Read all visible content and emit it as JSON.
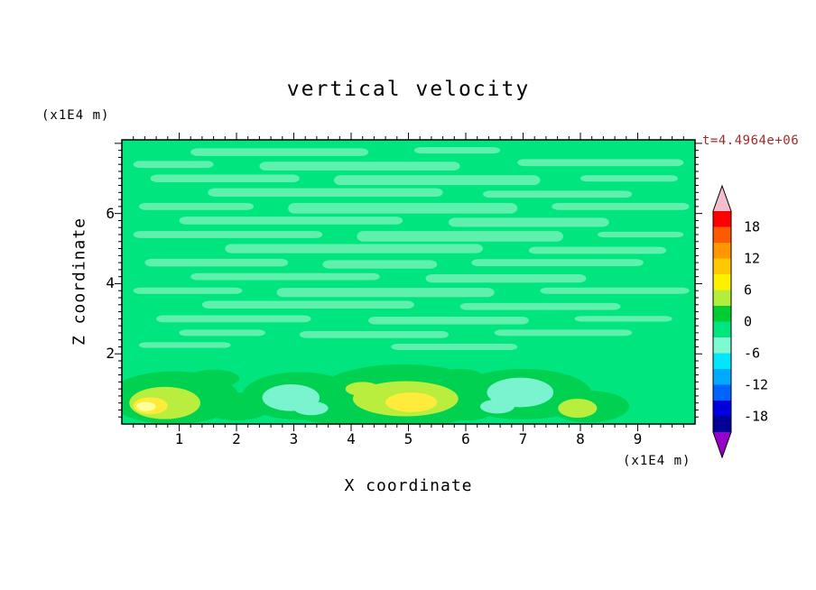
{
  "title": "vertical velocity",
  "annotations": {
    "timestamp": "t=4.4964e+06"
  },
  "colors": {
    "background": "#ffffff",
    "frame": "#000000",
    "timestamp": "#a52a2a"
  },
  "axes": {
    "x_label": "X coordinate",
    "y_label": "Z coordinate",
    "x_unit": "(x1E4 m)",
    "y_unit": "(x1E4 m)",
    "x_ticks": [
      1,
      2,
      3,
      4,
      5,
      6,
      7,
      8,
      9
    ],
    "y_ticks": [
      2,
      4,
      6
    ],
    "x_range": [
      0,
      10
    ],
    "y_range": [
      0,
      8.1
    ],
    "x_minor_step": 0.2,
    "y_minor_step": 0.2
  },
  "colorbar": {
    "labels": [
      18,
      12,
      6,
      0,
      -6,
      -12,
      -18
    ],
    "arrow_top_color": "#f5bece",
    "arrow_bottom_color": "#9600c8",
    "segments": [
      {
        "min": 18,
        "max": 21,
        "color": "#ff0000"
      },
      {
        "min": 15,
        "max": 18,
        "color": "#ff5a00"
      },
      {
        "min": 12,
        "max": 15,
        "color": "#ff9600"
      },
      {
        "min": 9,
        "max": 12,
        "color": "#ffc800"
      },
      {
        "min": 6,
        "max": 9,
        "color": "#fff000"
      },
      {
        "min": 3,
        "max": 6,
        "color": "#b4ee3c"
      },
      {
        "min": 0,
        "max": 3,
        "color": "#00cd32"
      },
      {
        "min": -3,
        "max": 0,
        "color": "#00e57e"
      },
      {
        "min": -6,
        "max": -3,
        "color": "#7dfad2"
      },
      {
        "min": -9,
        "max": -6,
        "color": "#00e6ff"
      },
      {
        "min": -12,
        "max": -9,
        "color": "#00aaff"
      },
      {
        "min": -15,
        "max": -12,
        "color": "#0064ff"
      },
      {
        "min": -18,
        "max": -15,
        "color": "#0000dc"
      },
      {
        "min": -21,
        "max": -18,
        "color": "#000096"
      }
    ]
  },
  "chart_data": {
    "type": "heatmap",
    "subtype": "filled-contour",
    "title": "vertical velocity",
    "xlabel": "X coordinate",
    "ylabel": "Z coordinate",
    "x_unit": "(x1E4 m)",
    "y_unit": "(x1E4 m)",
    "xlim": [
      0,
      10
    ],
    "ylim": [
      0,
      8.1
    ],
    "time_annotation": "t=4.4964e+06",
    "contour_interval": 3,
    "levels": [
      -21,
      -18,
      -15,
      -12,
      -9,
      -6,
      -3,
      0,
      3,
      6,
      9,
      12,
      15,
      18,
      21
    ],
    "colorbar_labels": [
      18,
      12,
      6,
      0,
      -6,
      -12,
      -18
    ],
    "field": {
      "base_color": "#00e57e",
      "base_value_bin": "-3..0",
      "streak_color": "#5ff0ae",
      "streak_value_bin": "-6..-3",
      "streaks": [
        [
          1.2,
          4.3,
          7.75,
          0.22
        ],
        [
          5.1,
          6.6,
          7.8,
          0.18
        ],
        [
          0.2,
          1.6,
          7.4,
          0.2
        ],
        [
          2.4,
          5.9,
          7.35,
          0.25
        ],
        [
          6.9,
          9.8,
          7.45,
          0.2
        ],
        [
          0.5,
          3.1,
          7.0,
          0.22
        ],
        [
          3.7,
          7.3,
          6.95,
          0.28
        ],
        [
          8.0,
          9.7,
          7.0,
          0.18
        ],
        [
          1.5,
          5.6,
          6.6,
          0.24
        ],
        [
          6.3,
          8.9,
          6.55,
          0.2
        ],
        [
          0.3,
          2.3,
          6.2,
          0.2
        ],
        [
          2.9,
          6.9,
          6.15,
          0.3
        ],
        [
          7.5,
          9.9,
          6.2,
          0.2
        ],
        [
          1.0,
          4.9,
          5.8,
          0.22
        ],
        [
          5.7,
          8.5,
          5.75,
          0.26
        ],
        [
          0.2,
          3.5,
          5.4,
          0.2
        ],
        [
          4.1,
          7.7,
          5.35,
          0.3
        ],
        [
          8.3,
          9.8,
          5.4,
          0.16
        ],
        [
          1.8,
          6.3,
          5.0,
          0.26
        ],
        [
          7.1,
          9.5,
          4.95,
          0.2
        ],
        [
          0.4,
          2.9,
          4.6,
          0.22
        ],
        [
          3.5,
          5.5,
          4.55,
          0.24
        ],
        [
          6.1,
          9.1,
          4.6,
          0.2
        ],
        [
          1.2,
          4.5,
          4.2,
          0.2
        ],
        [
          5.3,
          8.1,
          4.15,
          0.24
        ],
        [
          0.2,
          2.1,
          3.8,
          0.18
        ],
        [
          2.7,
          6.5,
          3.75,
          0.26
        ],
        [
          7.3,
          9.9,
          3.8,
          0.18
        ],
        [
          1.4,
          5.1,
          3.4,
          0.22
        ],
        [
          5.9,
          8.7,
          3.35,
          0.2
        ],
        [
          0.6,
          3.3,
          3.0,
          0.2
        ],
        [
          4.3,
          7.1,
          2.95,
          0.22
        ],
        [
          7.9,
          9.6,
          3.0,
          0.16
        ],
        [
          1.0,
          2.5,
          2.6,
          0.18
        ],
        [
          3.1,
          5.7,
          2.55,
          0.2
        ],
        [
          6.5,
          8.9,
          2.6,
          0.18
        ],
        [
          0.3,
          1.9,
          2.25,
          0.16
        ],
        [
          4.7,
          6.9,
          2.2,
          0.18
        ]
      ],
      "blobs": [
        [
          0.9,
          0.75,
          1.15,
          0.75,
          "#00d150"
        ],
        [
          2.0,
          0.5,
          0.6,
          0.4,
          "#00d150"
        ],
        [
          3.1,
          0.8,
          1.0,
          0.68,
          "#00d150"
        ],
        [
          4.9,
          0.8,
          1.55,
          0.9,
          "#00d150"
        ],
        [
          7.0,
          0.85,
          1.2,
          0.72,
          "#00d150"
        ],
        [
          8.15,
          0.5,
          0.7,
          0.45,
          "#00d150"
        ],
        [
          6.0,
          0.4,
          0.5,
          0.3,
          "#00d150"
        ],
        [
          3.9,
          0.3,
          0.9,
          0.3,
          "#00d150"
        ],
        [
          1.6,
          1.3,
          0.45,
          0.25,
          "#00d150"
        ],
        [
          5.9,
          1.35,
          0.4,
          0.22,
          "#00d150"
        ],
        [
          2.95,
          0.75,
          0.5,
          0.38,
          "#7af3cf"
        ],
        [
          6.95,
          0.9,
          0.58,
          0.42,
          "#7af3cf"
        ],
        [
          6.55,
          0.5,
          0.3,
          0.2,
          "#7af3cf"
        ],
        [
          3.3,
          0.45,
          0.3,
          0.2,
          "#7af3cf"
        ],
        [
          0.75,
          0.6,
          0.62,
          0.46,
          "#b9ee3e"
        ],
        [
          4.95,
          0.72,
          0.92,
          0.5,
          "#b9ee3e"
        ],
        [
          7.95,
          0.45,
          0.34,
          0.27,
          "#b9ee3e"
        ],
        [
          4.2,
          1.0,
          0.3,
          0.2,
          "#b9ee3e"
        ],
        [
          0.5,
          0.52,
          0.3,
          0.24,
          "#ffeb3a"
        ],
        [
          5.05,
          0.62,
          0.45,
          0.28,
          "#ffeb3a"
        ],
        [
          0.42,
          0.5,
          0.17,
          0.13,
          "#ffff9c"
        ]
      ]
    }
  }
}
